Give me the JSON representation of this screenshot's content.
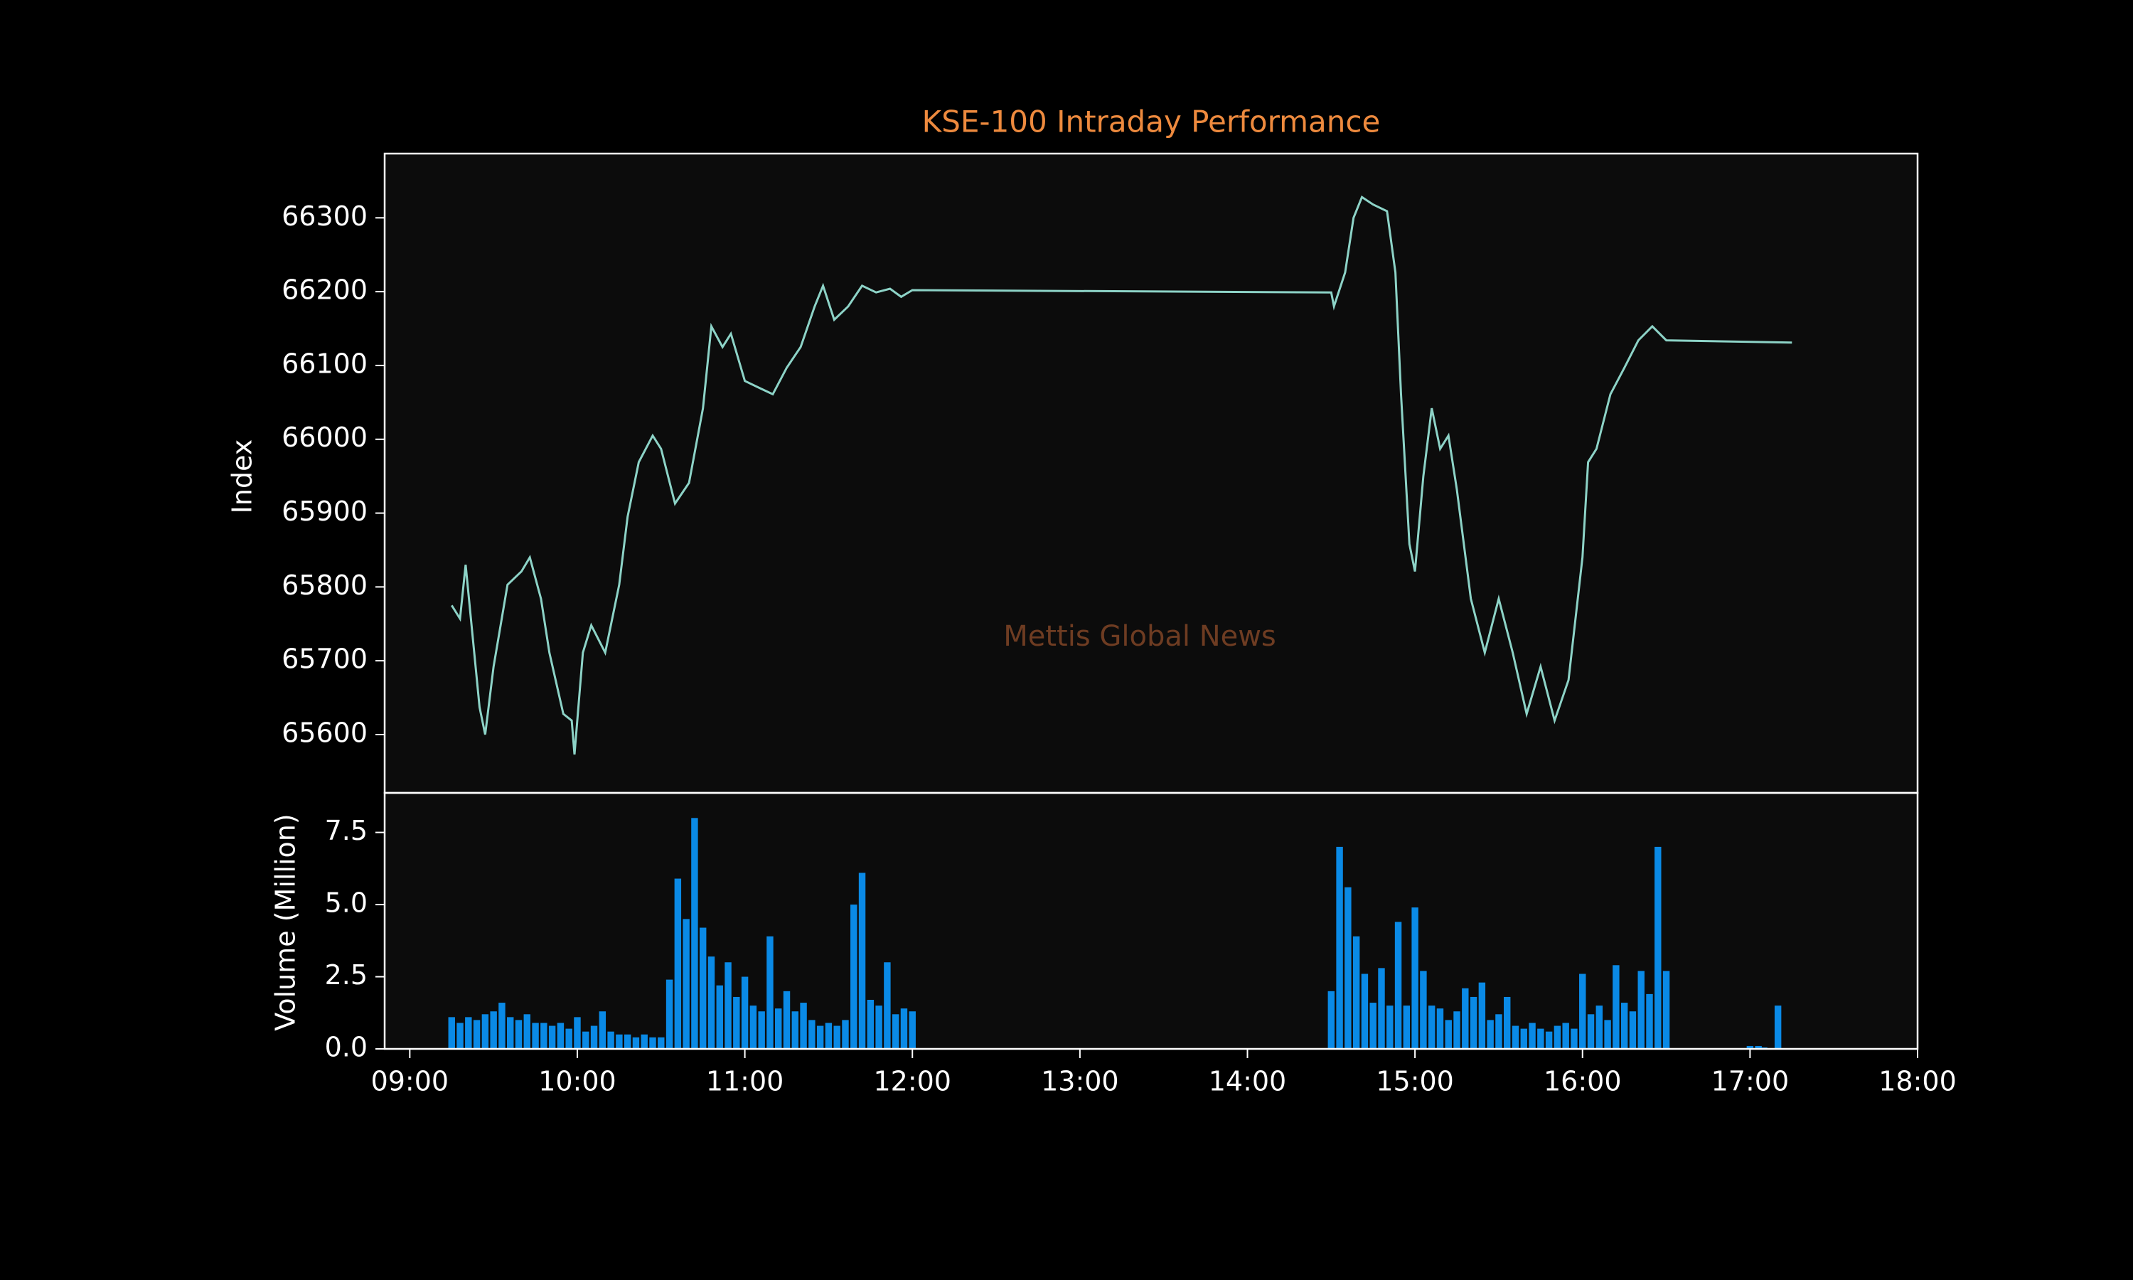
{
  "chart_data": [
    {
      "type": "line",
      "title": "KSE-100 Intraday Performance",
      "ylabel": "Index",
      "annotation": "Mettis Global News",
      "color": "#8dd3c7",
      "x": [
        "09:15",
        "09:18",
        "09:20",
        "09:25",
        "09:27",
        "09:30",
        "09:35",
        "09:40",
        "09:43",
        "09:47",
        "09:50",
        "09:55",
        "09:58",
        "09:59",
        "10:02",
        "10:05",
        "10:10",
        "10:15",
        "10:18",
        "10:22",
        "10:27",
        "10:30",
        "10:35",
        "10:40",
        "10:45",
        "10:48",
        "10:52",
        "10:55",
        "11:00",
        "11:05",
        "11:10",
        "11:15",
        "11:20",
        "11:25",
        "11:28",
        "11:32",
        "11:37",
        "11:42",
        "11:47",
        "11:52",
        "11:56",
        "12:00",
        "14:30",
        "14:31",
        "14:35",
        "14:38",
        "14:41",
        "14:45",
        "14:50",
        "14:53",
        "14:55",
        "14:58",
        "15:00",
        "15:03",
        "15:06",
        "15:09",
        "15:12",
        "15:15",
        "15:20",
        "15:25",
        "15:30",
        "15:35",
        "15:40",
        "15:45",
        "15:50",
        "15:55",
        "16:00",
        "16:02",
        "16:05",
        "16:10",
        "16:15",
        "16:20",
        "16:25",
        "16:30",
        "17:15"
      ],
      "values": [
        65775,
        65757,
        65830,
        65637,
        65600,
        65692,
        65803,
        65821,
        65840,
        65784,
        65711,
        65628,
        65619,
        65573,
        65711,
        65748,
        65711,
        65803,
        65895,
        65969,
        66005,
        65987,
        65913,
        65941,
        66042,
        66153,
        66125,
        66143,
        66079,
        66070,
        66061,
        66097,
        66125,
        66180,
        66208,
        66162,
        66180,
        66208,
        66199,
        66204,
        66193,
        66202,
        66199,
        66180,
        66226,
        66300,
        66328,
        66318,
        66309,
        66226,
        66061,
        65858,
        65821,
        65950,
        66042,
        65987,
        66005,
        65932,
        65784,
        65711,
        65784,
        65711,
        65628,
        65692,
        65619,
        65674,
        65840,
        65969,
        65987,
        66061,
        66097,
        66134,
        66153,
        66134,
        66131
      ],
      "xlim": [
        "08:51",
        "18:00"
      ],
      "ylim": [
        65521,
        66387
      ],
      "yticks": [
        65600,
        65700,
        65800,
        65900,
        66000,
        66100,
        66200,
        66300
      ]
    },
    {
      "type": "bar",
      "ylabel": "Volume (Million)",
      "color": "#0a8ae6",
      "x": [
        "09:15",
        "09:18",
        "09:21",
        "09:24",
        "09:27",
        "09:30",
        "09:33",
        "09:36",
        "09:39",
        "09:42",
        "09:45",
        "09:48",
        "09:51",
        "09:54",
        "09:57",
        "10:00",
        "10:03",
        "10:06",
        "10:09",
        "10:12",
        "10:15",
        "10:18",
        "10:21",
        "10:24",
        "10:27",
        "10:30",
        "10:33",
        "10:36",
        "10:39",
        "10:42",
        "10:45",
        "10:48",
        "10:51",
        "10:54",
        "10:57",
        "11:00",
        "11:03",
        "11:06",
        "11:09",
        "11:12",
        "11:15",
        "11:18",
        "11:21",
        "11:24",
        "11:27",
        "11:30",
        "11:33",
        "11:36",
        "11:39",
        "11:42",
        "11:45",
        "11:48",
        "11:51",
        "11:54",
        "11:57",
        "12:00",
        "14:30",
        "14:33",
        "14:36",
        "14:39",
        "14:42",
        "14:45",
        "14:48",
        "14:51",
        "14:54",
        "14:57",
        "15:00",
        "15:03",
        "15:06",
        "15:09",
        "15:12",
        "15:15",
        "15:18",
        "15:21",
        "15:24",
        "15:27",
        "15:30",
        "15:33",
        "15:36",
        "15:39",
        "15:42",
        "15:45",
        "15:48",
        "15:51",
        "15:54",
        "15:57",
        "16:00",
        "16:03",
        "16:06",
        "16:09",
        "16:12",
        "16:15",
        "16:18",
        "16:21",
        "16:24",
        "16:27",
        "16:30",
        "17:00",
        "17:03",
        "17:05",
        "17:10"
      ],
      "values": [
        1.1,
        0.9,
        1.1,
        1.0,
        1.2,
        1.3,
        1.6,
        1.1,
        1.0,
        1.2,
        0.9,
        0.9,
        0.8,
        0.9,
        0.7,
        1.1,
        0.6,
        0.8,
        1.3,
        0.6,
        0.5,
        0.5,
        0.4,
        0.5,
        0.4,
        0.4,
        2.4,
        5.9,
        4.5,
        8.0,
        4.2,
        3.2,
        2.2,
        3.0,
        1.8,
        2.5,
        1.5,
        1.3,
        3.9,
        1.4,
        2.0,
        1.3,
        1.6,
        1.0,
        0.8,
        0.9,
        0.8,
        1.0,
        5.0,
        6.1,
        1.7,
        1.5,
        3.0,
        1.2,
        1.4,
        1.3,
        2.0,
        7.0,
        5.6,
        3.9,
        2.6,
        1.6,
        2.8,
        1.5,
        4.4,
        1.5,
        4.9,
        2.7,
        1.5,
        1.4,
        1.0,
        1.3,
        2.1,
        1.8,
        2.3,
        1.0,
        1.2,
        1.8,
        0.8,
        0.7,
        0.9,
        0.7,
        0.6,
        0.8,
        0.9,
        0.7,
        2.6,
        1.2,
        1.5,
        1.0,
        2.9,
        1.6,
        1.3,
        2.7,
        1.9,
        7.0,
        2.7,
        0.1,
        0.1,
        0.05,
        1.5
      ],
      "xlim": [
        "08:51",
        "18:00"
      ],
      "ylim": [
        0,
        8.87
      ],
      "xticks": [
        "09:00",
        "10:00",
        "11:00",
        "12:00",
        "13:00",
        "14:00",
        "15:00",
        "16:00",
        "17:00",
        "18:00"
      ],
      "yticks": [
        {
          "value": 0,
          "label": "0.0"
        },
        2.5,
        {
          "value": 5,
          "label": "5.0"
        },
        7.5
      ]
    }
  ]
}
